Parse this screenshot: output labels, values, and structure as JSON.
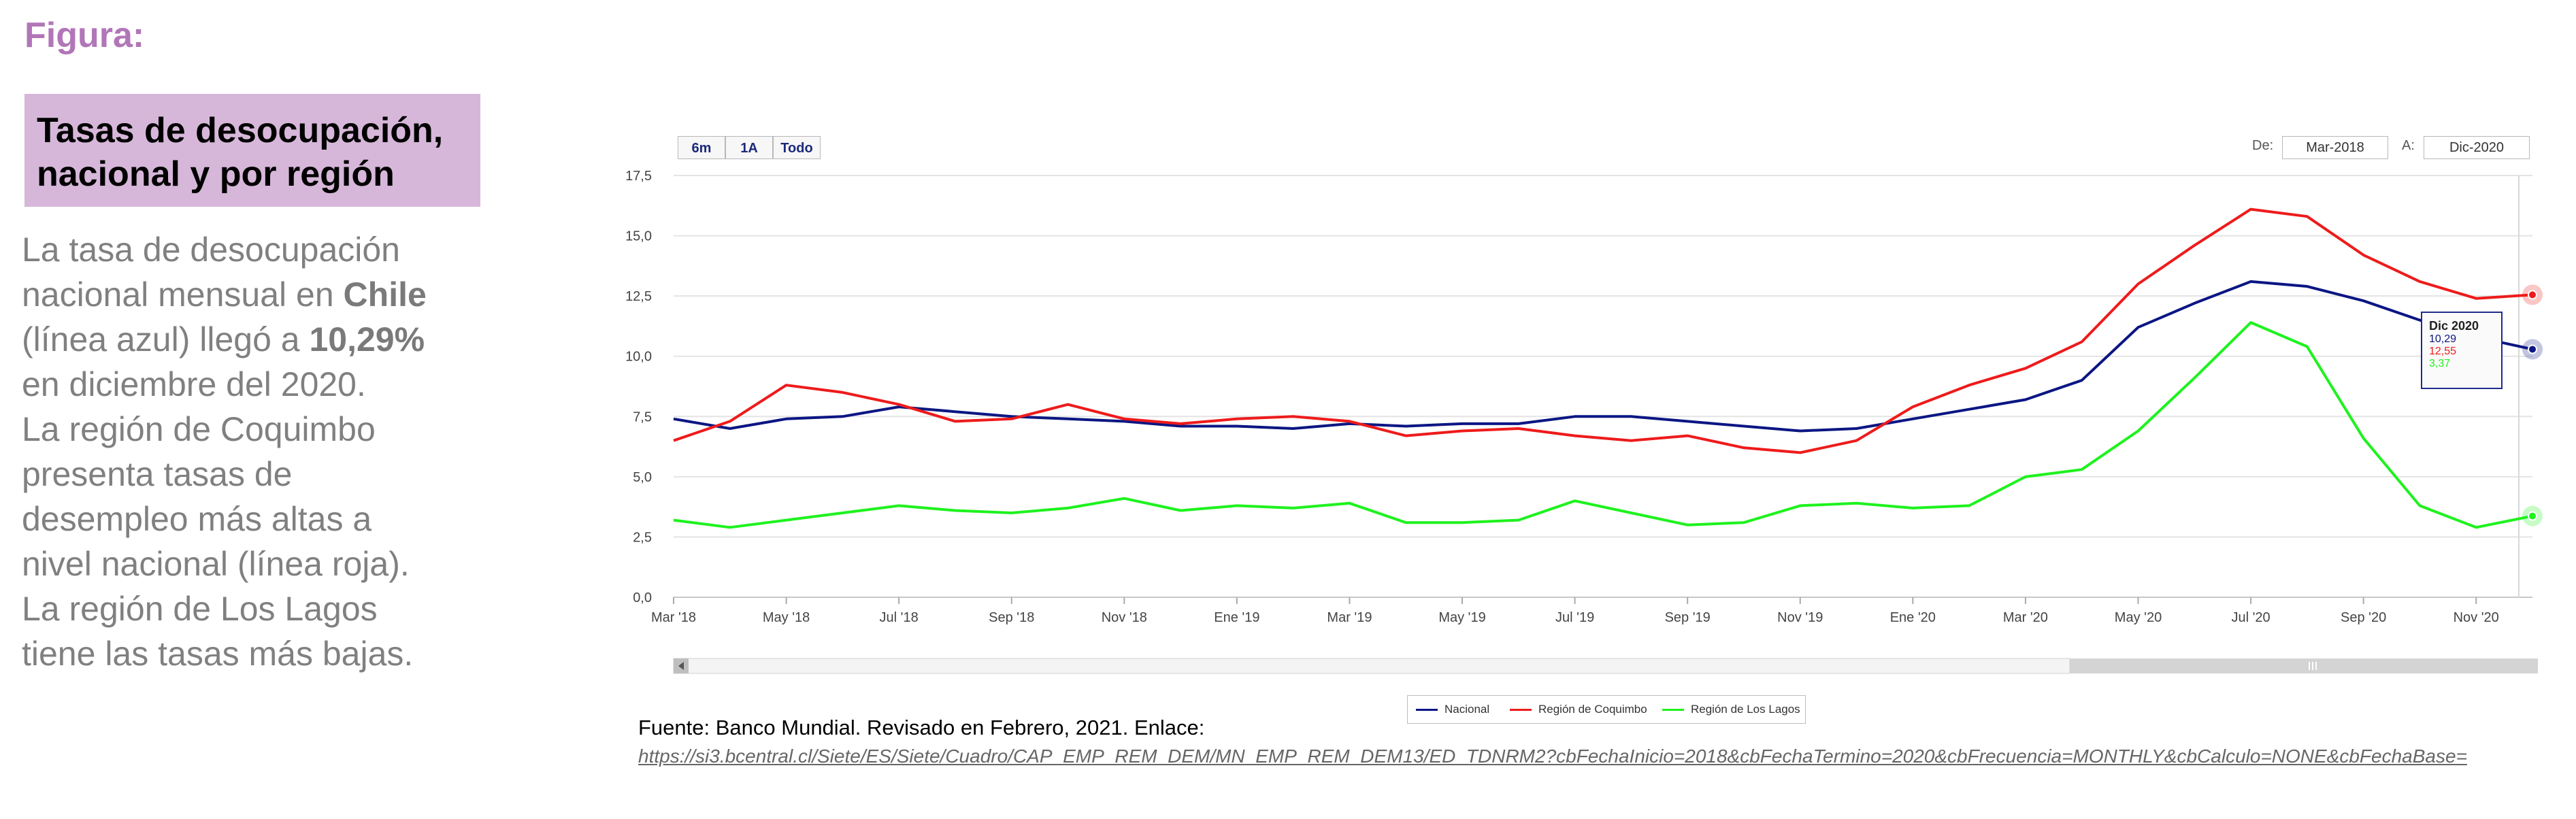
{
  "figure_label": "Figura:",
  "title_lines": [
    "Tasas de desocupación,",
    "nacional y por región"
  ],
  "description": {
    "l1": "La tasa de desocupación",
    "l2_pre": "nacional mensual en ",
    "l2_bold": "Chile",
    "l3_pre": "(línea azul) llegó a ",
    "l3_bold": "10,29%",
    "l4": "en diciembre del 2020.",
    "l5": "La región de Coquimbo",
    "l6": "presenta tasas de",
    "l7": "desempleo más altas a",
    "l8": "nivel nacional (línea roja).",
    "l9": "La región de Los Lagos",
    "l10": "tiene las tasas más bajas."
  },
  "controls": {
    "range_buttons": [
      "6m",
      "1A",
      "Todo"
    ],
    "from_label": "De:",
    "from_value": "Mar-2018",
    "to_label": "A:",
    "to_value": "Dic-2020"
  },
  "tooltip": {
    "title": "Dic 2020",
    "nacional": "10,29",
    "coquimbo": "12,55",
    "los_lagos": "3,37"
  },
  "source": {
    "text": "Fuente: Banco Mundial. Revisado en Febrero, 2021. Enlace:",
    "link": "https://si3.bcentral.cl/Siete/ES/Siete/Cuadro/CAP_EMP_REM_DEM/MN_EMP_REM_DEM13/ED_TDNRM2?cbFechaInicio=2018&cbFechaTermino=2020&cbFrecuencia=MONTHLY&cbCalculo=NONE&cbFechaBase="
  },
  "chart_data": {
    "type": "line",
    "x": [
      "Mar '18",
      "Abr '18",
      "May '18",
      "Jun '18",
      "Jul '18",
      "Ago '18",
      "Sep '18",
      "Oct '18",
      "Nov '18",
      "Dic '18",
      "Ene '19",
      "Feb '19",
      "Mar '19",
      "Abr '19",
      "May '19",
      "Jun '19",
      "Jul '19",
      "Ago '19",
      "Sep '19",
      "Oct '19",
      "Nov '19",
      "Dic '19",
      "Ene '20",
      "Feb '20",
      "Mar '20",
      "Abr '20",
      "May '20",
      "Jun '20",
      "Jul '20",
      "Ago '20",
      "Sep '20",
      "Oct '20",
      "Nov '20",
      "Dic '20"
    ],
    "x_tick_labels": [
      "Mar '18",
      "May '18",
      "Jul '18",
      "Sep '18",
      "Nov '18",
      "Ene '19",
      "Mar '19",
      "May '19",
      "Jul '19",
      "Sep '19",
      "Nov '19",
      "Ene '20",
      "Mar '20",
      "May '20",
      "Jul '20",
      "Sep '20",
      "Nov '20"
    ],
    "y_tick_labels": [
      "0,0",
      "2,5",
      "5,0",
      "7,5",
      "10,0",
      "12,5",
      "15,0",
      "17,5"
    ],
    "ylim": [
      0,
      17.5
    ],
    "grid": true,
    "legend_position": "bottom-center",
    "series": [
      {
        "name": "Nacional",
        "color": "#0b1683",
        "values": [
          7.4,
          7.0,
          7.4,
          7.5,
          7.9,
          7.7,
          7.5,
          7.4,
          7.3,
          7.1,
          7.1,
          7.0,
          7.2,
          7.1,
          7.2,
          7.2,
          7.5,
          7.5,
          7.3,
          7.1,
          6.9,
          7.0,
          7.4,
          7.8,
          8.2,
          9.0,
          11.2,
          12.2,
          13.1,
          12.9,
          12.3,
          11.5,
          10.8,
          10.29
        ]
      },
      {
        "name": "Región de Coquimbo",
        "color": "#ee1b1b",
        "values": [
          6.5,
          7.3,
          8.8,
          8.5,
          8.0,
          7.3,
          7.4,
          8.0,
          7.4,
          7.2,
          7.4,
          7.5,
          7.3,
          6.7,
          6.9,
          7.0,
          6.7,
          6.5,
          6.7,
          6.2,
          6.0,
          6.5,
          7.9,
          8.8,
          9.5,
          10.6,
          13.0,
          14.6,
          16.1,
          15.8,
          14.2,
          13.1,
          12.4,
          12.55
        ]
      },
      {
        "name": "Región de Los Lagos",
        "color": "#1ef21e",
        "values": [
          3.2,
          2.9,
          3.2,
          3.5,
          3.8,
          3.6,
          3.5,
          3.7,
          4.1,
          3.6,
          3.8,
          3.7,
          3.9,
          3.1,
          3.1,
          3.2,
          4.0,
          3.5,
          3.0,
          3.1,
          3.8,
          3.9,
          3.7,
          3.8,
          5.0,
          5.3,
          6.9,
          9.1,
          11.4,
          10.4,
          6.6,
          3.8,
          2.9,
          3.37
        ]
      }
    ]
  }
}
